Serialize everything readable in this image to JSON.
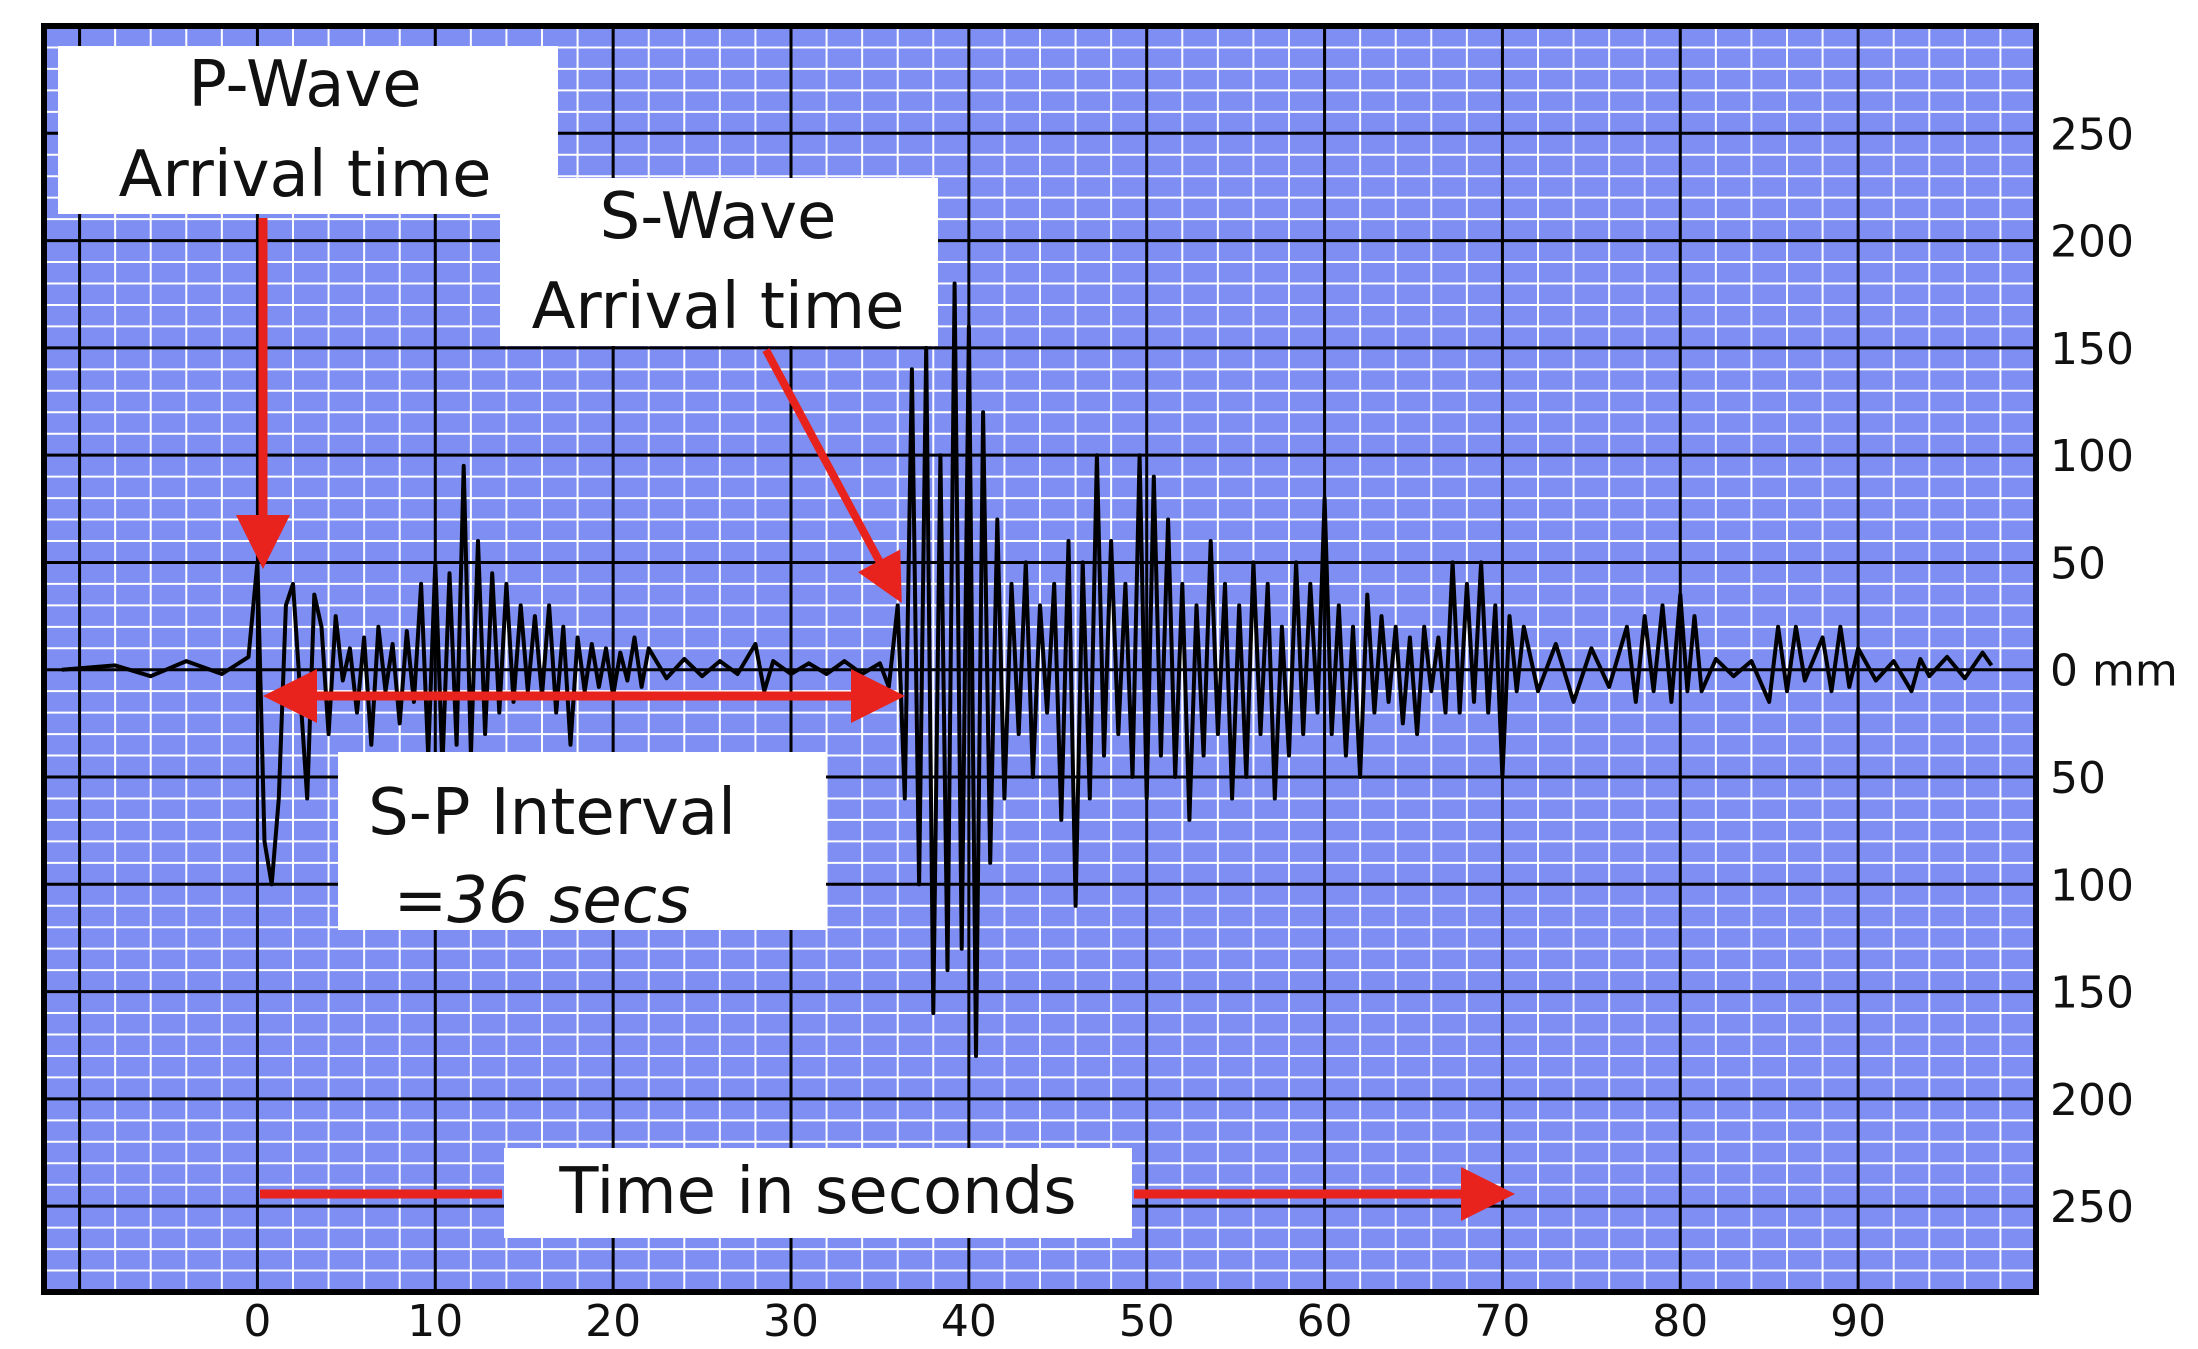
{
  "chart_data": {
    "type": "line",
    "x_axis": {
      "ticks": [
        0,
        10,
        20,
        30,
        40,
        50,
        60,
        70,
        80,
        90
      ],
      "range": [
        -12,
        100
      ]
    },
    "y_axis": {
      "range": [
        -290,
        300
      ],
      "ticks": [
        {
          "value": 250,
          "label": "250"
        },
        {
          "value": 200,
          "label": "200"
        },
        {
          "value": 150,
          "label": "150"
        },
        {
          "value": 100,
          "label": "100"
        },
        {
          "value": 50,
          "label": "50"
        },
        {
          "value": 0,
          "label": "0 mm"
        },
        {
          "value": -50,
          "label": "50"
        },
        {
          "value": -100,
          "label": "100"
        },
        {
          "value": -150,
          "label": "150"
        },
        {
          "value": -200,
          "label": "200"
        },
        {
          "value": -250,
          "label": "250"
        }
      ]
    },
    "grid": true,
    "series": [
      {
        "points": [
          [
            -11,
            0
          ],
          [
            -8,
            2
          ],
          [
            -6,
            -3
          ],
          [
            -4,
            4
          ],
          [
            -2,
            -2
          ],
          [
            -0.5,
            6
          ],
          [
            0,
            50
          ],
          [
            0.4,
            -80
          ],
          [
            0.8,
            -100
          ],
          [
            1.2,
            -60
          ],
          [
            1.6,
            30
          ],
          [
            2,
            40
          ],
          [
            2.4,
            -10
          ],
          [
            2.8,
            -60
          ],
          [
            3.2,
            35
          ],
          [
            3.6,
            20
          ],
          [
            4,
            -30
          ],
          [
            4.4,
            25
          ],
          [
            4.8,
            -5
          ],
          [
            5.2,
            10
          ],
          [
            5.6,
            -20
          ],
          [
            6,
            15
          ],
          [
            6.4,
            -35
          ],
          [
            6.8,
            20
          ],
          [
            7.2,
            -10
          ],
          [
            7.6,
            12
          ],
          [
            8,
            -25
          ],
          [
            8.4,
            18
          ],
          [
            8.8,
            -15
          ],
          [
            9.2,
            40
          ],
          [
            9.6,
            -40
          ],
          [
            10,
            50
          ],
          [
            10.4,
            -45
          ],
          [
            10.8,
            45
          ],
          [
            11.2,
            -35
          ],
          [
            11.6,
            95
          ],
          [
            12,
            -40
          ],
          [
            12.4,
            60
          ],
          [
            12.8,
            -30
          ],
          [
            13.2,
            45
          ],
          [
            13.6,
            -20
          ],
          [
            14,
            40
          ],
          [
            14.4,
            -15
          ],
          [
            14.8,
            30
          ],
          [
            15.2,
            -10
          ],
          [
            15.6,
            25
          ],
          [
            16,
            -12
          ],
          [
            16.4,
            30
          ],
          [
            16.8,
            -20
          ],
          [
            17.2,
            20
          ],
          [
            17.6,
            -35
          ],
          [
            18,
            15
          ],
          [
            18.4,
            -10
          ],
          [
            18.8,
            12
          ],
          [
            19.2,
            -8
          ],
          [
            19.6,
            10
          ],
          [
            20,
            -12
          ],
          [
            20.4,
            8
          ],
          [
            20.8,
            -5
          ],
          [
            21.2,
            15
          ],
          [
            21.6,
            -8
          ],
          [
            22,
            10
          ],
          [
            23,
            -4
          ],
          [
            24,
            5
          ],
          [
            25,
            -3
          ],
          [
            26,
            4
          ],
          [
            27,
            -2
          ],
          [
            28,
            12
          ],
          [
            28.5,
            -10
          ],
          [
            29,
            4
          ],
          [
            30,
            -2
          ],
          [
            31,
            3
          ],
          [
            32,
            -2
          ],
          [
            33,
            4
          ],
          [
            34,
            -2
          ],
          [
            35,
            3
          ],
          [
            35.5,
            -8
          ],
          [
            36,
            30
          ],
          [
            36.4,
            -60
          ],
          [
            36.8,
            140
          ],
          [
            37.2,
            -100
          ],
          [
            37.6,
            150
          ],
          [
            38,
            -160
          ],
          [
            38.4,
            100
          ],
          [
            38.8,
            -140
          ],
          [
            39.2,
            180
          ],
          [
            39.6,
            -130
          ],
          [
            40,
            160
          ],
          [
            40.4,
            -180
          ],
          [
            40.8,
            120
          ],
          [
            41.2,
            -90
          ],
          [
            41.6,
            70
          ],
          [
            42,
            -60
          ],
          [
            42.4,
            40
          ],
          [
            42.8,
            -30
          ],
          [
            43.2,
            50
          ],
          [
            43.6,
            -50
          ],
          [
            44,
            30
          ],
          [
            44.4,
            -20
          ],
          [
            44.8,
            40
          ],
          [
            45.2,
            -70
          ],
          [
            45.6,
            60
          ],
          [
            46,
            -110
          ],
          [
            46.4,
            50
          ],
          [
            46.8,
            -60
          ],
          [
            47.2,
            100
          ],
          [
            47.6,
            -40
          ],
          [
            48,
            60
          ],
          [
            48.4,
            -30
          ],
          [
            48.8,
            40
          ],
          [
            49.2,
            -50
          ],
          [
            49.6,
            100
          ],
          [
            50,
            -60
          ],
          [
            50.4,
            90
          ],
          [
            50.8,
            -40
          ],
          [
            51.2,
            70
          ],
          [
            51.6,
            -50
          ],
          [
            52,
            40
          ],
          [
            52.4,
            -70
          ],
          [
            52.8,
            30
          ],
          [
            53.2,
            -40
          ],
          [
            53.6,
            60
          ],
          [
            54,
            -30
          ],
          [
            54.4,
            40
          ],
          [
            54.8,
            -60
          ],
          [
            55.2,
            30
          ],
          [
            55.6,
            -50
          ],
          [
            56,
            50
          ],
          [
            56.4,
            -30
          ],
          [
            56.8,
            40
          ],
          [
            57.2,
            -60
          ],
          [
            57.6,
            20
          ],
          [
            58,
            -40
          ],
          [
            58.4,
            50
          ],
          [
            58.8,
            -30
          ],
          [
            59.2,
            40
          ],
          [
            59.6,
            -20
          ],
          [
            60,
            80
          ],
          [
            60.4,
            -30
          ],
          [
            60.8,
            30
          ],
          [
            61.2,
            -40
          ],
          [
            61.6,
            20
          ],
          [
            62,
            -50
          ],
          [
            62.4,
            35
          ],
          [
            62.8,
            -20
          ],
          [
            63.2,
            25
          ],
          [
            63.6,
            -15
          ],
          [
            64,
            20
          ],
          [
            64.4,
            -25
          ],
          [
            64.8,
            15
          ],
          [
            65.2,
            -30
          ],
          [
            65.6,
            20
          ],
          [
            66,
            -10
          ],
          [
            66.4,
            15
          ],
          [
            66.8,
            -20
          ],
          [
            67.2,
            50
          ],
          [
            67.6,
            -20
          ],
          [
            68,
            40
          ],
          [
            68.4,
            -15
          ],
          [
            68.8,
            50
          ],
          [
            69.2,
            -20
          ],
          [
            69.6,
            30
          ],
          [
            70,
            -50
          ],
          [
            70.4,
            25
          ],
          [
            70.8,
            -10
          ],
          [
            71.2,
            20
          ],
          [
            72,
            -10
          ],
          [
            73,
            12
          ],
          [
            74,
            -15
          ],
          [
            75,
            10
          ],
          [
            76,
            -8
          ],
          [
            77,
            20
          ],
          [
            77.5,
            -15
          ],
          [
            78,
            25
          ],
          [
            78.5,
            -10
          ],
          [
            79,
            30
          ],
          [
            79.5,
            -15
          ],
          [
            80,
            35
          ],
          [
            80.4,
            -10
          ],
          [
            80.8,
            25
          ],
          [
            81.2,
            -10
          ],
          [
            82,
            5
          ],
          [
            83,
            -3
          ],
          [
            84,
            4
          ],
          [
            85,
            -15
          ],
          [
            85.5,
            20
          ],
          [
            86,
            -10
          ],
          [
            86.5,
            20
          ],
          [
            87,
            -5
          ],
          [
            88,
            15
          ],
          [
            88.5,
            -10
          ],
          [
            89,
            20
          ],
          [
            89.5,
            -8
          ],
          [
            90,
            10
          ],
          [
            91,
            -5
          ],
          [
            92,
            4
          ],
          [
            93,
            -10
          ],
          [
            93.5,
            5
          ],
          [
            94,
            -3
          ],
          [
            95,
            6
          ],
          [
            96,
            -4
          ],
          [
            97,
            8
          ],
          [
            97.5,
            2
          ]
        ]
      }
    ],
    "annotations": {
      "p_wave": {
        "line1": "P-Wave",
        "line2": "Arrival time",
        "x": 0
      },
      "s_wave": {
        "line1": "S-Wave",
        "line2": "Arrival time",
        "x": 36
      },
      "interval": {
        "line1": "S-P Interval",
        "line2": "=36 secs",
        "from": 0,
        "to": 36
      },
      "time_axis": {
        "label": "Time in seconds",
        "from": 0,
        "to": 70
      }
    },
    "colors": {
      "background": "#7e8ef2",
      "minor_grid": "#ffffff",
      "major_grid": "#000000",
      "trace": "#000000",
      "annotation_arrow": "#e8231d"
    }
  }
}
